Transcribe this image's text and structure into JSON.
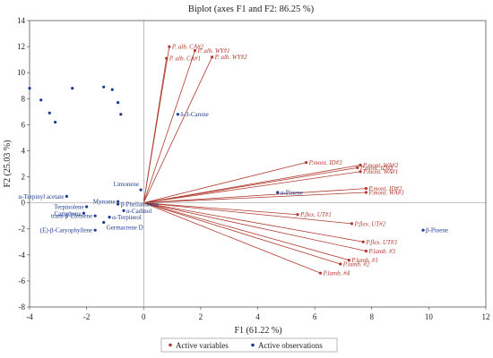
{
  "chart_data": {
    "type": "scatter",
    "title": "Biplot (axes F1 and F2: 86.25 %)",
    "xlabel": "F1 (61.22 %)",
    "ylabel": "F2 (25.03 %)",
    "xlim": [
      -4,
      12
    ],
    "ylim": [
      -8,
      14
    ],
    "xticks": [
      -4,
      -2,
      0,
      2,
      4,
      6,
      8,
      10,
      12
    ],
    "yticks": [
      -8,
      -6,
      -4,
      -2,
      0,
      2,
      4,
      6,
      8,
      10,
      12,
      14
    ],
    "grid": false,
    "legend_position": "bottom",
    "colors": {
      "variables": "#b03a2e",
      "observations": "#1f3a93"
    },
    "series": [
      {
        "name": "Active variables",
        "kind": "vectors",
        "points": [
          {
            "label": "P. alb. CA#2",
            "x": 0.9,
            "y": 12.0
          },
          {
            "label": "P. alb. CA#1",
            "x": 0.8,
            "y": 11.1
          },
          {
            "label": "P. alb. WY#1",
            "x": 1.8,
            "y": 11.7
          },
          {
            "label": "P. alb. WY#2",
            "x": 2.4,
            "y": 11.2
          },
          {
            "label": "P.mont. ID#3",
            "x": 5.7,
            "y": 3.1
          },
          {
            "label": "P.mont. WA#2",
            "x": 7.6,
            "y": 2.9
          },
          {
            "label": "P.mont. ID#1",
            "x": 7.5,
            "y": 2.7
          },
          {
            "label": "P.mont. WA#1",
            "x": 7.6,
            "y": 2.4
          },
          {
            "label": "P.mont. ID#2",
            "x": 7.8,
            "y": 1.1
          },
          {
            "label": "P.mont. WA#3",
            "x": 7.8,
            "y": 0.8
          },
          {
            "label": "P.flex. UT#1",
            "x": 5.4,
            "y": -0.9
          },
          {
            "label": "P.flex. UT#2",
            "x": 7.3,
            "y": -1.6
          },
          {
            "label": "P.flex. UT#3",
            "x": 7.7,
            "y": -3.0
          },
          {
            "label": "P.lamb. #3",
            "x": 7.8,
            "y": -3.7
          },
          {
            "label": "P.lamb. #1",
            "x": 7.2,
            "y": -4.4
          },
          {
            "label": "P.lamb. #2",
            "x": 6.9,
            "y": -4.7
          },
          {
            "label": "P.lamb. #4",
            "x": 6.2,
            "y": -5.4
          }
        ]
      },
      {
        "name": "Active observations",
        "kind": "points",
        "points": [
          {
            "label": "δ-3-Carene",
            "x": 1.2,
            "y": 6.8
          },
          {
            "label": "α-Pinene",
            "x": 4.7,
            "y": 0.8
          },
          {
            "label": "β-Pinene",
            "x": 9.8,
            "y": -2.1
          },
          {
            "label": "Limonene",
            "x": -0.1,
            "y": 1.0
          },
          {
            "label": "α-Terpinyl acetate",
            "x": -2.7,
            "y": 0.5
          },
          {
            "label": "Myrcene",
            "x": -0.9,
            "y": 0.1
          },
          {
            "label": "β-Phellandrene",
            "x": -0.9,
            "y": -0.1
          },
          {
            "label": "α-Cadinol",
            "x": -0.7,
            "y": -0.6
          },
          {
            "label": "α-Terpineol",
            "x": -1.2,
            "y": -1.1
          },
          {
            "label": "Terpinolene",
            "x": -2.0,
            "y": -0.3
          },
          {
            "label": "Camphene",
            "x": -2.1,
            "y": -0.8
          },
          {
            "label": "trans-β-Elemene",
            "x": -1.7,
            "y": -1.0
          },
          {
            "label": "Germacrene D",
            "x": -1.4,
            "y": -1.5
          },
          {
            "label": "(E)-β-Caryophyllene",
            "x": -1.7,
            "y": -2.1
          },
          {
            "x": -4.0,
            "y": 8.8
          },
          {
            "x": -3.6,
            "y": 7.9
          },
          {
            "x": -3.3,
            "y": 6.9
          },
          {
            "x": -2.5,
            "y": 8.8
          },
          {
            "x": -1.4,
            "y": 8.9
          },
          {
            "x": -1.1,
            "y": 8.7
          },
          {
            "x": -0.9,
            "y": 7.7
          },
          {
            "x": -0.8,
            "y": 6.8
          },
          {
            "x": -3.1,
            "y": 6.2
          }
        ]
      }
    ]
  }
}
